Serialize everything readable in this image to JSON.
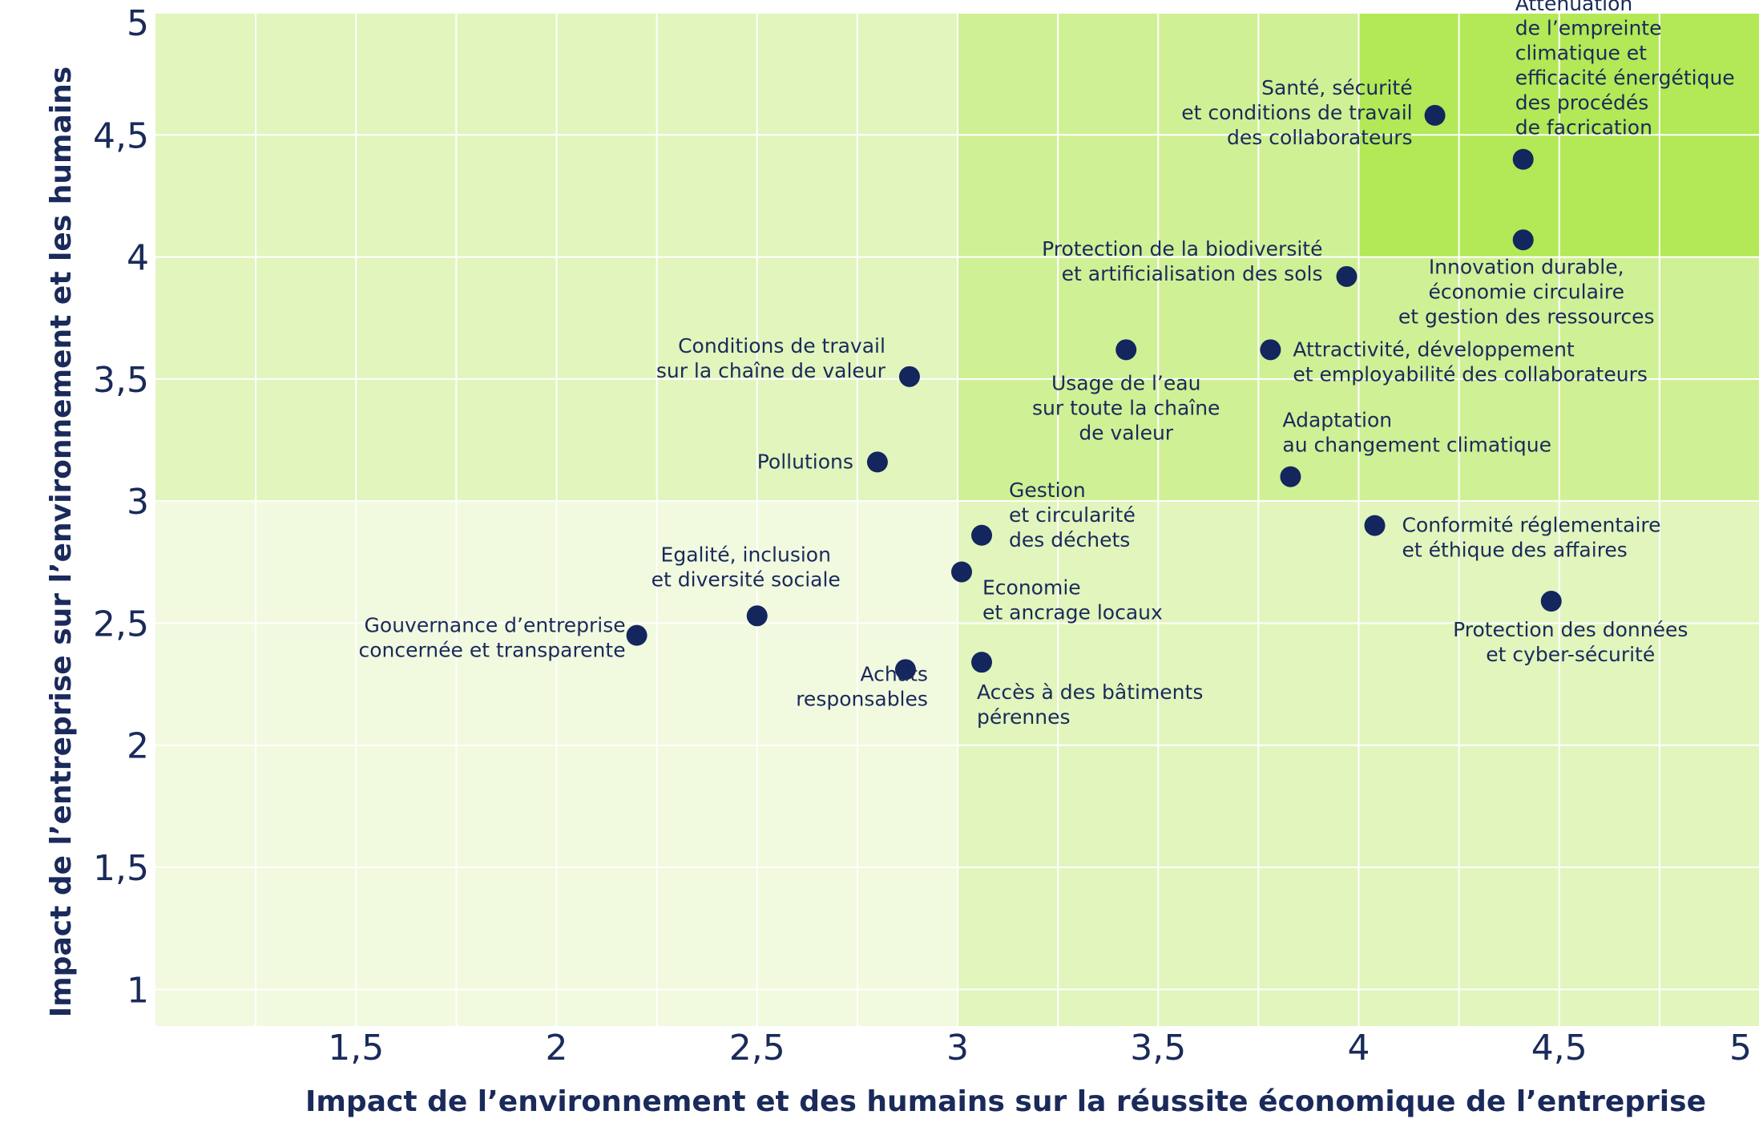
{
  "chart_data": {
    "type": "scatter",
    "xlabel": "Impact de l’environnement et des humains sur la réussite économique de l’entreprise",
    "ylabel": "Impact de l’entreprise sur l’environnement et les humains",
    "xlim": [
      1,
      5
    ],
    "ylim": [
      0.85,
      5
    ],
    "x_ticks": [
      "1,5",
      "2",
      "2,5",
      "3",
      "3,5",
      "4",
      "4,5",
      "5"
    ],
    "y_ticks": [
      "1",
      "1,5",
      "2",
      "2,5",
      "3",
      "3,5",
      "4",
      "4,5",
      "5"
    ],
    "grid": true,
    "zones": [
      {
        "x": [
          1,
          3
        ],
        "y": [
          0.85,
          3
        ],
        "color": "#f1f9df"
      },
      {
        "x": [
          1,
          3
        ],
        "y": [
          3,
          5
        ],
        "color": "#e1f5bd"
      },
      {
        "x": [
          3,
          5
        ],
        "y": [
          0.85,
          3
        ],
        "color": "#e1f5bd"
      },
      {
        "x": [
          3,
          5
        ],
        "y": [
          3,
          5
        ],
        "color": "#d0f096"
      },
      {
        "x": [
          4,
          5
        ],
        "y": [
          4,
          5
        ],
        "color": "#b3e856"
      }
    ],
    "point_color": "#13265e",
    "points": [
      {
        "x": 4.19,
        "y": 4.58,
        "label": [
          "Santé, sécurité",
          "et conditions de travail",
          "des collaborateurs"
        ],
        "anchor": "end"
      },
      {
        "x": 4.41,
        "y": 4.4,
        "label": [
          "Atténuation",
          "de l’empreinte",
          "climatique et",
          "efficacité énergétique",
          "des procédés",
          "de facrication"
        ],
        "anchor": "start"
      },
      {
        "x": 4.41,
        "y": 4.07,
        "label": [
          "Innovation durable,",
          "économie circulaire",
          "et gestion des ressources"
        ],
        "anchor": "middle"
      },
      {
        "x": 3.97,
        "y": 3.92,
        "label": [
          "Protection de la biodiversité",
          "et artificialisation des sols"
        ],
        "anchor": "end"
      },
      {
        "x": 3.42,
        "y": 3.62,
        "label": [
          "Usage de l’eau",
          "sur toute la chaîne",
          "de valeur"
        ],
        "anchor": "middle"
      },
      {
        "x": 3.78,
        "y": 3.62,
        "label": [
          "Attractivité, développement",
          "et employabilité des collaborateurs"
        ],
        "anchor": "start"
      },
      {
        "x": 2.88,
        "y": 3.51,
        "label": [
          "Conditions de travail",
          "sur la chaîne de valeur"
        ],
        "anchor": "end"
      },
      {
        "x": 2.8,
        "y": 3.16,
        "label": [
          "Pollutions"
        ],
        "anchor": "end"
      },
      {
        "x": 3.83,
        "y": 3.1,
        "label": [
          "Adaptation",
          "au changement climatique"
        ],
        "anchor": "start"
      },
      {
        "x": 4.04,
        "y": 2.9,
        "label": [
          "Conformité réglementaire",
          "et éthique des affaires"
        ],
        "anchor": "start"
      },
      {
        "x": 3.06,
        "y": 2.86,
        "label": [
          "Gestion",
          "et circularité",
          "des déchets"
        ],
        "anchor": "start"
      },
      {
        "x": 3.01,
        "y": 2.71,
        "label": [
          "Economie",
          "et ancrage locaux"
        ],
        "anchor": "start"
      },
      {
        "x": 2.5,
        "y": 2.53,
        "label": [
          "Egalité, inclusion",
          "et diversité sociale"
        ],
        "anchor": "middle"
      },
      {
        "x": 4.48,
        "y": 2.59,
        "label": [
          "Protection des données",
          "et cyber-sécurité"
        ],
        "anchor": "middle"
      },
      {
        "x": 2.2,
        "y": 2.45,
        "label": [
          "Gouvernance d’entreprise",
          "concernée et transparente"
        ],
        "anchor": "end"
      },
      {
        "x": 2.87,
        "y": 2.31,
        "label": [
          "Achats",
          "responsables"
        ],
        "anchor": "end"
      },
      {
        "x": 3.06,
        "y": 2.34,
        "label": [
          "Accès à des bâtiments",
          "pérennes"
        ],
        "anchor": "start"
      }
    ]
  }
}
